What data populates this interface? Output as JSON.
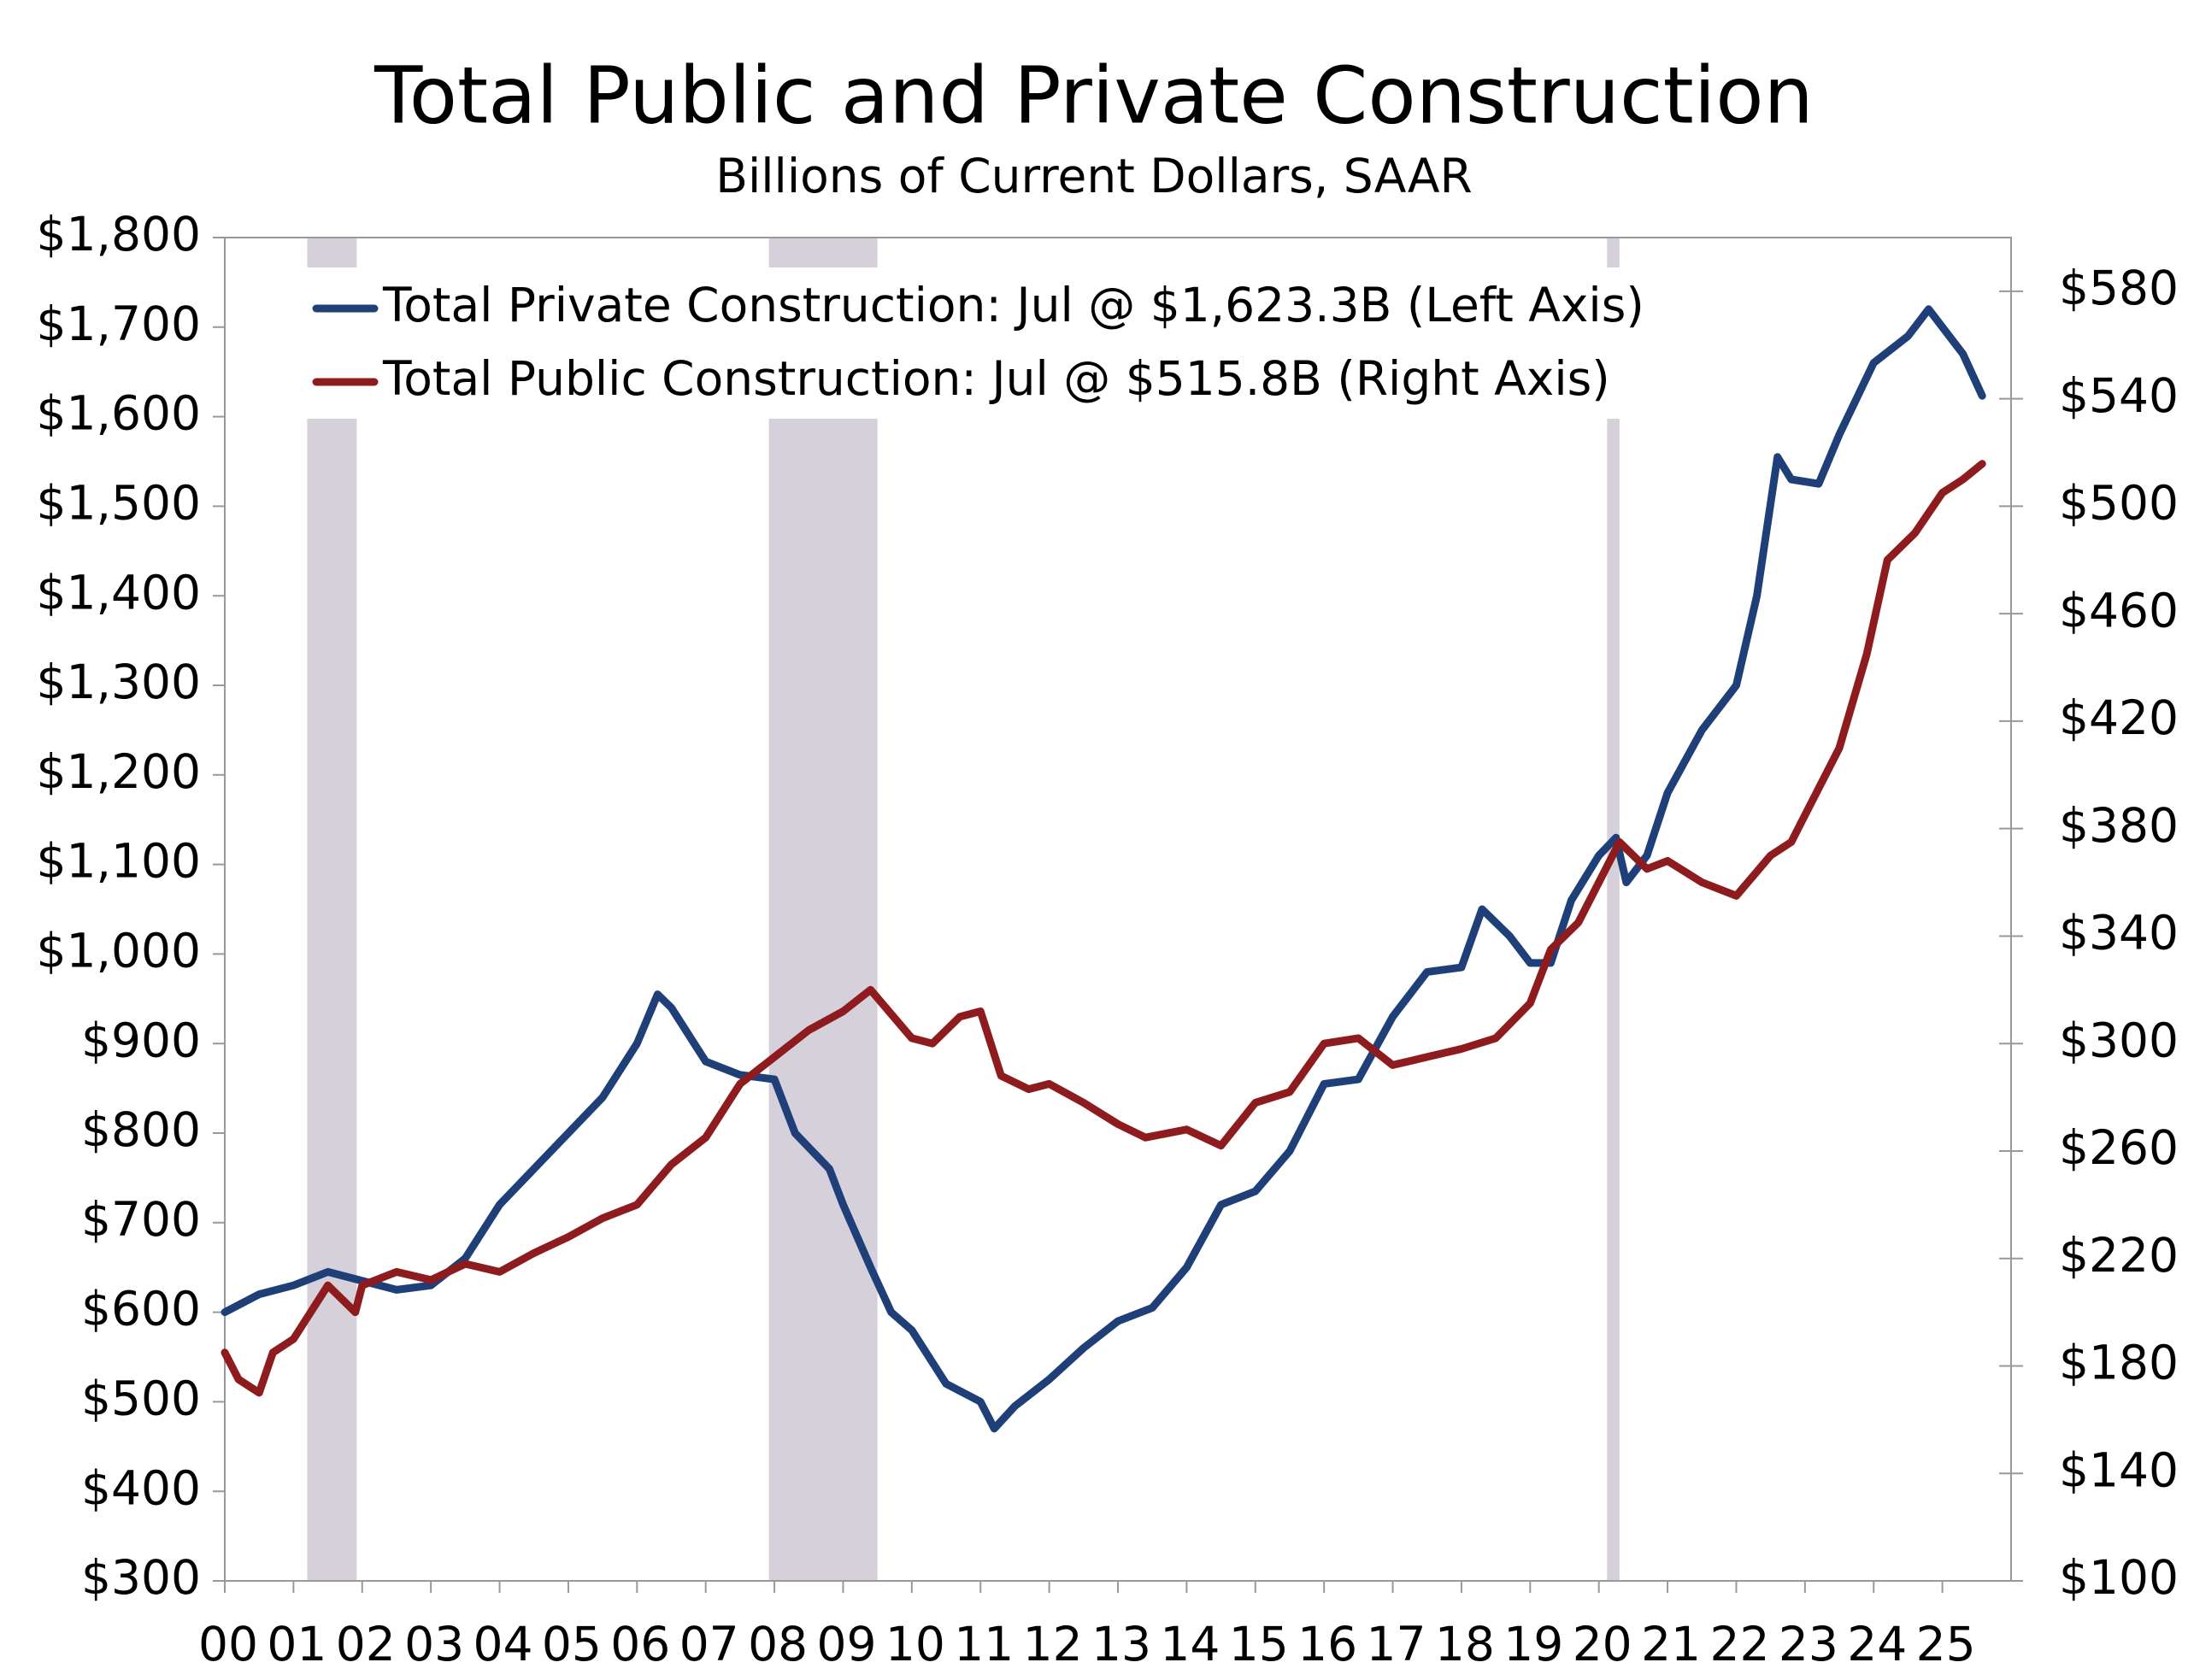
{
  "chart_data": {
    "type": "line",
    "title": "Total Public and Private Construction",
    "subtitle": "Billions of Current Dollars, SAAR",
    "xlim": [
      2000,
      2026
    ],
    "xticks": [
      {
        "value": 2000,
        "label": "00"
      },
      {
        "value": 2001,
        "label": "01"
      },
      {
        "value": 2002,
        "label": "02"
      },
      {
        "value": 2003,
        "label": "03"
      },
      {
        "value": 2004,
        "label": "04"
      },
      {
        "value": 2005,
        "label": "05"
      },
      {
        "value": 2006,
        "label": "06"
      },
      {
        "value": 2007,
        "label": "07"
      },
      {
        "value": 2008,
        "label": "08"
      },
      {
        "value": 2009,
        "label": "09"
      },
      {
        "value": 2010,
        "label": "10"
      },
      {
        "value": 2011,
        "label": "11"
      },
      {
        "value": 2012,
        "label": "12"
      },
      {
        "value": 2013,
        "label": "13"
      },
      {
        "value": 2014,
        "label": "14"
      },
      {
        "value": 2015,
        "label": "15"
      },
      {
        "value": 2016,
        "label": "16"
      },
      {
        "value": 2017,
        "label": "17"
      },
      {
        "value": 2018,
        "label": "18"
      },
      {
        "value": 2019,
        "label": "19"
      },
      {
        "value": 2020,
        "label": "20"
      },
      {
        "value": 2021,
        "label": "21"
      },
      {
        "value": 2022,
        "label": "22"
      },
      {
        "value": 2023,
        "label": "23"
      },
      {
        "value": 2024,
        "label": "24"
      },
      {
        "value": 2025,
        "label": "25"
      }
    ],
    "ylim": [
      300,
      1800
    ],
    "yticks": [
      {
        "value": 300,
        "label": "$300"
      },
      {
        "value": 400,
        "label": "$400"
      },
      {
        "value": 500,
        "label": "$500"
      },
      {
        "value": 600,
        "label": "$600"
      },
      {
        "value": 700,
        "label": "$700"
      },
      {
        "value": 800,
        "label": "$800"
      },
      {
        "value": 900,
        "label": "$900"
      },
      {
        "value": 1000,
        "label": "$1,000"
      },
      {
        "value": 1100,
        "label": "$1,100"
      },
      {
        "value": 1200,
        "label": "$1,200"
      },
      {
        "value": 1300,
        "label": "$1,300"
      },
      {
        "value": 1400,
        "label": "$1,400"
      },
      {
        "value": 1500,
        "label": "$1,500"
      },
      {
        "value": 1600,
        "label": "$1,600"
      },
      {
        "value": 1700,
        "label": "$1,700"
      },
      {
        "value": 1800,
        "label": "$1,800"
      }
    ],
    "y2lim": [
      100,
      600
    ],
    "y2ticks": [
      {
        "value": 100,
        "label": "$100"
      },
      {
        "value": 140,
        "label": "$140"
      },
      {
        "value": 180,
        "label": "$180"
      },
      {
        "value": 220,
        "label": "$220"
      },
      {
        "value": 260,
        "label": "$260"
      },
      {
        "value": 300,
        "label": "$300"
      },
      {
        "value": 340,
        "label": "$340"
      },
      {
        "value": 380,
        "label": "$380"
      },
      {
        "value": 420,
        "label": "$420"
      },
      {
        "value": 460,
        "label": "$460"
      },
      {
        "value": 500,
        "label": "$500"
      },
      {
        "value": 540,
        "label": "$540"
      },
      {
        "value": 580,
        "label": "$580"
      }
    ],
    "recessions": [
      [
        2001.2,
        2001.92
      ],
      [
        2007.92,
        2009.5
      ],
      [
        2020.12,
        2020.3
      ]
    ],
    "recession_color": "#d5d0da",
    "series": [
      {
        "name": "Total Private Construction: Jul @ $1,623.3B (Left Axis)",
        "color": "#1f3f78",
        "axis": "y",
        "x": [
          2000.0,
          2000.5,
          2001.0,
          2001.5,
          2002.0,
          2002.5,
          2003.0,
          2003.5,
          2004.0,
          2004.5,
          2005.0,
          2005.5,
          2006.0,
          2006.3,
          2006.5,
          2007.0,
          2007.5,
          2008.0,
          2008.3,
          2008.8,
          2009.0,
          2009.4,
          2009.7,
          2010.0,
          2010.5,
          2011.0,
          2011.2,
          2011.5,
          2012.0,
          2012.5,
          2013.0,
          2013.5,
          2014.0,
          2014.5,
          2015.0,
          2015.5,
          2016.0,
          2016.5,
          2017.0,
          2017.5,
          2018.0,
          2018.3,
          2018.7,
          2019.0,
          2019.3,
          2019.6,
          2020.0,
          2020.25,
          2020.4,
          2020.7,
          2021.0,
          2021.5,
          2022.0,
          2022.3,
          2022.6,
          2022.8,
          2023.2,
          2023.5,
          2024.0,
          2024.5,
          2024.8,
          2025.0,
          2025.3,
          2025.58
        ],
        "values": [
          600,
          620,
          630,
          645,
          635,
          625,
          630,
          660,
          720,
          760,
          800,
          840,
          900,
          955,
          940,
          880,
          865,
          860,
          800,
          760,
          720,
          650,
          600,
          580,
          520,
          500,
          470,
          495,
          525,
          560,
          590,
          605,
          650,
          720,
          735,
          780,
          855,
          860,
          930,
          980,
          985,
          1050,
          1020,
          990,
          990,
          1060,
          1110,
          1130,
          1080,
          1110,
          1180,
          1250,
          1300,
          1400,
          1555,
          1530,
          1525,
          1580,
          1660,
          1690,
          1720,
          1700,
          1670,
          1623.3
        ]
      },
      {
        "name": "Total Public Construction: Jul @ $515.8B (Right Axis)",
        "color": "#8e1c1f",
        "axis": "y2",
        "x": [
          2000.0,
          2000.2,
          2000.5,
          2000.7,
          2001.0,
          2001.5,
          2001.9,
          2002.0,
          2002.5,
          2003.0,
          2003.5,
          2004.0,
          2004.5,
          2005.0,
          2005.5,
          2006.0,
          2006.5,
          2007.0,
          2007.5,
          2008.0,
          2008.5,
          2009.0,
          2009.4,
          2010.0,
          2010.3,
          2010.7,
          2011.0,
          2011.3,
          2011.7,
          2012.0,
          2012.5,
          2013.0,
          2013.4,
          2014.0,
          2014.5,
          2015.0,
          2015.5,
          2016.0,
          2016.5,
          2017.0,
          2017.5,
          2018.0,
          2018.5,
          2019.0,
          2019.3,
          2019.7,
          2020.0,
          2020.3,
          2020.7,
          2021.0,
          2021.5,
          2022.0,
          2022.5,
          2022.8,
          2023.0,
          2023.5,
          2023.9,
          2024.2,
          2024.6,
          2025.0,
          2025.3,
          2025.58
        ],
        "values": [
          185,
          175,
          170,
          185,
          190,
          210,
          200,
          210,
          215,
          212,
          218,
          215,
          222,
          228,
          235,
          240,
          255,
          265,
          285,
          295,
          305,
          312,
          320,
          302,
          300,
          310,
          312,
          288,
          283,
          285,
          278,
          270,
          265,
          268,
          262,
          278,
          282,
          300,
          302,
          292,
          295,
          298,
          302,
          315,
          335,
          345,
          360,
          375,
          365,
          368,
          360,
          355,
          370,
          375,
          385,
          410,
          445,
          480,
          490,
          505,
          510,
          515.8
        ]
      }
    ]
  }
}
